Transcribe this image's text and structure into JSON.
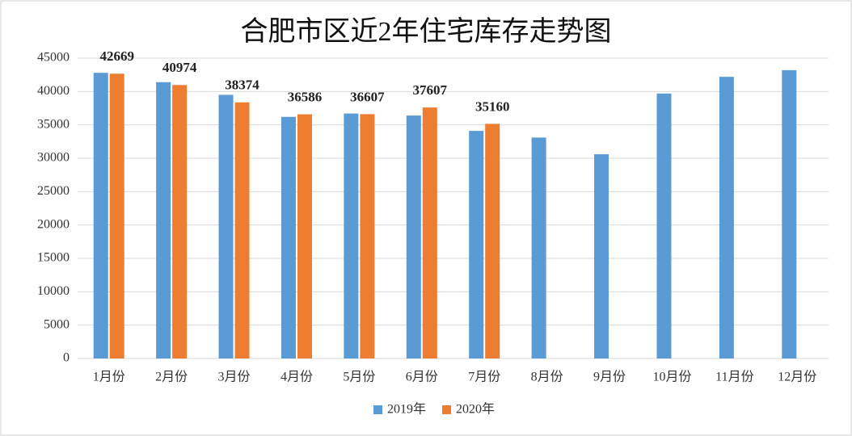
{
  "chart_data": {
    "type": "bar",
    "title": "合肥市区近2年住宅库存走势图",
    "categories": [
      "1月份",
      "2月份",
      "3月份",
      "4月份",
      "5月份",
      "6月份",
      "7月份",
      "8月份",
      "9月份",
      "10月份",
      "11月份",
      "12月份"
    ],
    "series": [
      {
        "name": "2019年",
        "color": "#5b9bd5",
        "data_labels": false,
        "values": [
          42800,
          41400,
          39500,
          36200,
          36700,
          36400,
          34100,
          33100,
          30600,
          39700,
          42200,
          43200
        ]
      },
      {
        "name": "2020年",
        "color": "#ed7d31",
        "data_labels": true,
        "values": [
          42669,
          40974,
          38374,
          36586,
          36607,
          37607,
          35160,
          null,
          null,
          null,
          null,
          null
        ]
      }
    ],
    "ylim": [
      0,
      45000
    ],
    "yticks": [
      0,
      5000,
      10000,
      15000,
      20000,
      25000,
      30000,
      35000,
      40000,
      45000
    ],
    "grid": true,
    "legend": "bottom"
  }
}
